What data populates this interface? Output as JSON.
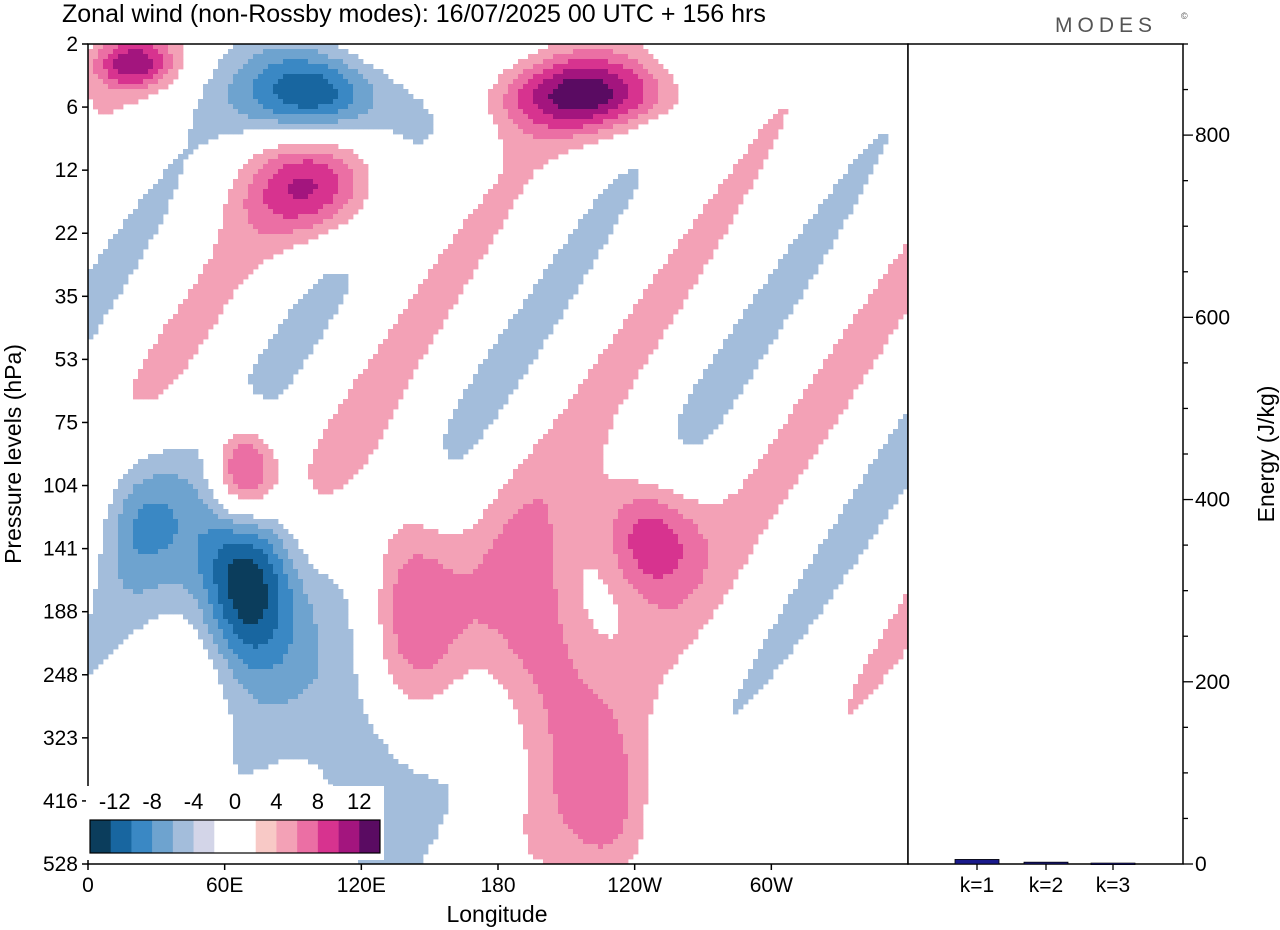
{
  "title": "Zonal wind (non-Rossby modes):  16/07/2025  00 UTC  + 156 hrs",
  "logo": "MODES",
  "logo_mark": "©",
  "colors": {
    "neg_6": "#0b3d5c",
    "neg_5": "#1866a0",
    "neg_4": "#3a88c4",
    "neg_3": "#6ea3cf",
    "neg_2": "#a3bddb",
    "neg_1": "#d3d5e8",
    "pos_1": "#f8c9c6",
    "pos_2": "#f3a1b6",
    "pos_3": "#eb6fa4",
    "pos_4": "#d7338f",
    "pos_5": "#a3157e",
    "pos_6": "#5a0b62",
    "energy_bar": "#1a1a8c"
  },
  "chart_data": [
    {
      "type": "heatmap",
      "title": "Zonal wind (non-Rossby modes):  16/07/2025  00 UTC  + 156 hrs",
      "xlabel": "Longitude",
      "ylabel": "Pressure levels (hPa)",
      "x_ticks": [
        "0",
        "60E",
        "120E",
        "180",
        "120W",
        "60W"
      ],
      "x_tick_values": [
        0,
        60,
        120,
        180,
        240,
        300
      ],
      "xlim": [
        0,
        360
      ],
      "y_ticks": [
        "2",
        "6",
        "12",
        "22",
        "35",
        "53",
        "75",
        "104",
        "141",
        "188",
        "248",
        "323",
        "416",
        "528"
      ],
      "colorbar": {
        "labels": [
          "-12",
          "-8",
          "-4",
          "0",
          "4",
          "8",
          "12"
        ],
        "levels": [
          -12,
          -10,
          -8,
          -6,
          -4,
          -2,
          2,
          4,
          6,
          8,
          10,
          12
        ]
      },
      "features": [
        {
          "lon": 70,
          "level_index": 8.6,
          "value": -14,
          "extent_lon": 22,
          "extent_lev": 1.4
        },
        {
          "lon": 100,
          "level_index": 0.8,
          "value": -11,
          "extent_lon": 30,
          "extent_lev": 0.7
        },
        {
          "lon": 22,
          "level_index": 7.4,
          "value": -5,
          "extent_lon": 20,
          "extent_lev": 1.2
        },
        {
          "lon": 120,
          "level_index": 11.4,
          "value": -5,
          "extent_lon": 25,
          "extent_lev": 1.6
        },
        {
          "lon": 68,
          "level_index": 6.8,
          "value": 10,
          "extent_lon": 14,
          "extent_lev": 0.8
        },
        {
          "lon": 220,
          "level_index": 0.8,
          "value": 10,
          "extent_lon": 40,
          "extent_lev": 0.6
        },
        {
          "lon": 245,
          "level_index": 7.8,
          "value": 9,
          "extent_lon": 22,
          "extent_lev": 1.0
        },
        {
          "lon": 200,
          "level_index": 9.5,
          "value": 7,
          "extent_lon": 25,
          "extent_lev": 1.8
        },
        {
          "lon": 140,
          "level_index": 8.5,
          "value": 6,
          "extent_lon": 20,
          "extent_lev": 1.6
        },
        {
          "lon": 100,
          "level_index": 2.3,
          "value": 7,
          "extent_lon": 30,
          "extent_lev": 0.8
        },
        {
          "lon": 20,
          "level_index": 0.3,
          "value": 8,
          "extent_lon": 18,
          "extent_lev": 0.4
        },
        {
          "lon": 230,
          "level_index": 12.3,
          "value": 5,
          "extent_lon": 22,
          "extent_lev": 1.3
        }
      ]
    },
    {
      "type": "bar",
      "categories": [
        "k=1",
        "k=2",
        "k=3"
      ],
      "values": [
        5,
        2,
        1
      ],
      "xlabel": "",
      "ylabel": "Energy (J/kg)",
      "ylim": [
        0,
        900
      ],
      "y_ticks": [
        "0",
        "200",
        "400",
        "600",
        "800"
      ],
      "y_tick_values": [
        0,
        200,
        400,
        600,
        800
      ]
    }
  ]
}
